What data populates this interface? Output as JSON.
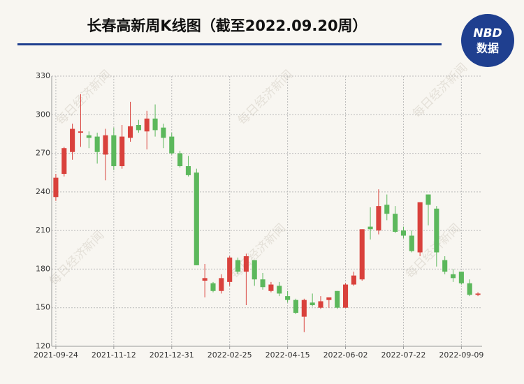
{
  "chart_data": {
    "type": "candlestick",
    "title": "长春高新周K线图（截至2022.09.20周）",
    "logo": {
      "top": "NBD",
      "bottom": "数据"
    },
    "watermark": "每日经济新闻",
    "categories": [
      "2021-09-24",
      null,
      null,
      null,
      null,
      null,
      null,
      "2021-11-12",
      null,
      null,
      null,
      null,
      null,
      null,
      "2021-12-31",
      null,
      null,
      null,
      null,
      null,
      null,
      "2022-02-25",
      null,
      null,
      null,
      null,
      null,
      null,
      "2022-04-15",
      null,
      null,
      null,
      null,
      null,
      null,
      "2022-06-02",
      null,
      null,
      null,
      null,
      null,
      null,
      "2022-07-22",
      null,
      null,
      null,
      null,
      null,
      null,
      "2022-09-09",
      null,
      null
    ],
    "open": [
      236,
      254,
      271,
      286,
      284,
      283,
      269,
      284,
      260,
      282,
      292,
      287,
      297,
      290,
      283,
      270,
      260,
      255,
      171,
      169,
      163,
      170,
      187,
      178,
      187,
      172,
      163,
      167,
      159,
      156,
      143,
      154,
      150,
      156,
      163,
      150,
      168,
      172,
      213,
      210,
      230,
      223,
      210,
      206,
      193,
      238,
      227,
      187,
      176,
      178,
      169,
      160
    ],
    "high": [
      254,
      275,
      293,
      316,
      287,
      286,
      289,
      290,
      292,
      310,
      296,
      303,
      308,
      293,
      286,
      272,
      268,
      258,
      184,
      170,
      176,
      190,
      189,
      192,
      187,
      177,
      170,
      170,
      163,
      157,
      157,
      161,
      159,
      158,
      163,
      169,
      178,
      211,
      228,
      242,
      238,
      229,
      213,
      210,
      232,
      238,
      229,
      190,
      180,
      178,
      172,
      162
    ],
    "low": [
      233,
      252,
      265,
      275,
      274,
      262,
      249,
      257,
      258,
      279,
      286,
      273,
      283,
      274,
      269,
      259,
      252,
      183,
      158,
      162,
      161,
      167,
      176,
      152,
      167,
      164,
      162,
      159,
      154,
      145,
      131,
      151,
      149,
      150,
      149,
      150,
      167,
      171,
      203,
      207,
      218,
      208,
      204,
      193,
      190,
      214,
      182,
      176,
      170,
      168,
      159,
      159
    ],
    "close": [
      251,
      274,
      289,
      287,
      282,
      271,
      284,
      260,
      283,
      291,
      288,
      297,
      288,
      282,
      270,
      260,
      253,
      183,
      173,
      163,
      173,
      189,
      178,
      190,
      172,
      166,
      168,
      161,
      156,
      146,
      156,
      152,
      155,
      158,
      150,
      168,
      175,
      211,
      211,
      229,
      223,
      209,
      206,
      194,
      232,
      230,
      193,
      178,
      173,
      169,
      160,
      161
    ],
    "up_color": "#d9413c",
    "down_color": "#5cb85c",
    "ylim": [
      120,
      330
    ],
    "yticks": [
      120,
      150,
      180,
      210,
      240,
      270,
      300,
      330
    ],
    "grid": true
  }
}
